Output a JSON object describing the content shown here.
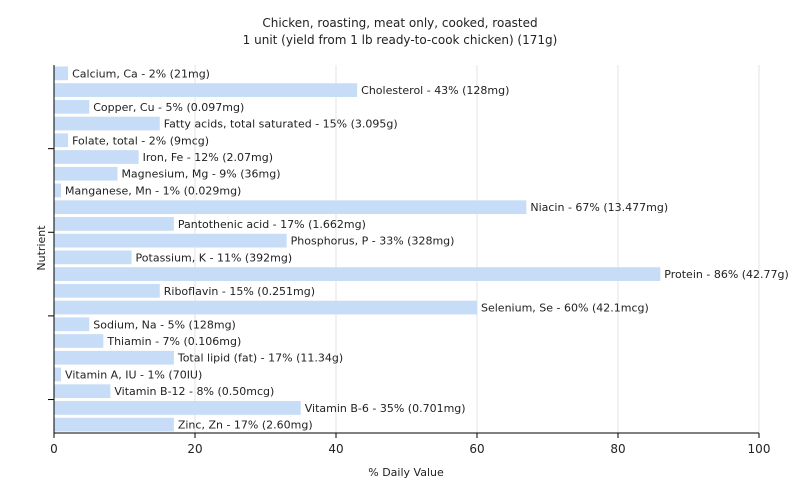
{
  "chart_data": {
    "type": "bar",
    "orientation": "horizontal",
    "title": "Chicken, roasting, meat only, cooked, roasted",
    "subtitle": "1 unit (yield from 1 lb ready-to-cook chicken) (171g)",
    "xlabel": "% Daily Value",
    "ylabel": "Nutrient",
    "xlim": [
      0,
      100
    ],
    "xticks": [
      0,
      20,
      40,
      60,
      80,
      100
    ],
    "grid": true,
    "bar_color": "#c6dcf7",
    "categories": [
      "Calcium, Ca",
      "Cholesterol",
      "Copper, Cu",
      "Fatty acids, total saturated",
      "Folate, total",
      "Iron, Fe",
      "Magnesium, Mg",
      "Manganese, Mn",
      "Niacin",
      "Pantothenic acid",
      "Phosphorus, P",
      "Potassium, K",
      "Protein",
      "Riboflavin",
      "Selenium, Se",
      "Sodium, Na",
      "Thiamin",
      "Total lipid (fat)",
      "Vitamin A, IU",
      "Vitamin B-12",
      "Vitamin B-6",
      "Zinc, Zn"
    ],
    "values": [
      2,
      43,
      5,
      15,
      2,
      12,
      9,
      1,
      67,
      17,
      33,
      11,
      86,
      15,
      60,
      5,
      7,
      17,
      1,
      8,
      35,
      17
    ],
    "labels": [
      "Calcium, Ca - 2% (21mg)",
      "Cholesterol - 43% (128mg)",
      "Copper, Cu - 5% (0.097mg)",
      "Fatty acids, total saturated - 15% (3.095g)",
      "Folate, total - 2% (9mcg)",
      "Iron, Fe - 12% (2.07mg)",
      "Magnesium, Mg - 9% (36mg)",
      "Manganese, Mn - 1% (0.029mg)",
      "Niacin - 67% (13.477mg)",
      "Pantothenic acid - 17% (1.662mg)",
      "Phosphorus, P - 33% (328mg)",
      "Potassium, K - 11% (392mg)",
      "Protein - 86% (42.77g)",
      "Riboflavin - 15% (0.251mg)",
      "Selenium, Se - 60% (42.1mcg)",
      "Sodium, Na - 5% (128mg)",
      "Thiamin - 7% (0.106mg)",
      "Total lipid (fat) - 17% (11.34g)",
      "Vitamin A, IU - 1% (70IU)",
      "Vitamin B-12 - 8% (0.50mcg)",
      "Vitamin B-6 - 35% (0.701mg)",
      "Zinc, Zn - 17% (2.60mg)"
    ]
  }
}
